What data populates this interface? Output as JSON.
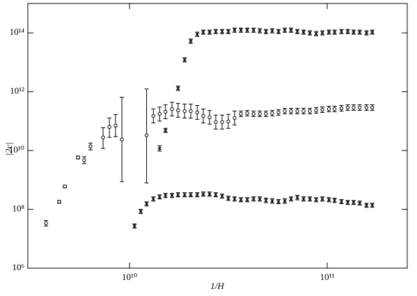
{
  "chart_data": {
    "type": "scatter",
    "xscale": "log",
    "yscale": "log",
    "xlabel": "1/H",
    "ylabel": "|2c|",
    "xlim": [
      3060000000.0,
      254000000000.0
    ],
    "ylim": [
      1000000.0,
      1000000000000000.0
    ],
    "xticks": [
      {
        "value": 10000000000.0,
        "label": "10¹⁰"
      },
      {
        "value": 100000000000.0,
        "label": "10¹¹"
      }
    ],
    "yticks": [
      {
        "value": 1000000.0,
        "label": "10⁶"
      },
      {
        "value": 100000000.0,
        "label": "10⁸"
      },
      {
        "value": 10000000000.0,
        "label": "10¹⁰"
      },
      {
        "value": 1000000000000.0,
        "label": "10¹²"
      },
      {
        "value": 100000000000000.0,
        "label": "10¹⁴"
      }
    ],
    "series": [
      {
        "marker": "circle",
        "color": "#000000",
        "x": [
          3780000000.0,
          4410000000.0,
          4710000000.0,
          5490000000.0,
          5900000000.0,
          6350000000.0,
          7350000000.0,
          7910000000.0,
          8500000000.0,
          9150000000.0,
          12200000000.0,
          13200000000.0,
          14200000000.0,
          15200000000.0,
          16400000000.0,
          17600000000.0,
          19000000000.0,
          20400000000.0,
          22000000000.0,
          23600000000.0,
          25400000000.0,
          27300000000.0,
          29400000000.0,
          31600000000.0,
          34000000000.0,
          36600000000.0,
          39400000000.0,
          42400000000.0,
          45600000000.0,
          49000000000.0,
          52700000000.0,
          56700000000.0,
          61000000000.0,
          65600000000.0,
          70600000000.0,
          75900000000.0,
          81700000000.0,
          87900000000.0,
          94500000000.0,
          102000000000.0,
          109000000000.0,
          118000000000.0,
          127000000000.0,
          136000000000.0,
          146000000000.0,
          158000000000.0,
          169000000000.0
        ],
        "values": [
          33800000.0,
          182000000.0,
          597000000.0,
          5820000000.0,
          4690000000.0,
          13800000000.0,
          28000000000.0,
          63100000000.0,
          70300000000.0,
          23800000000.0,
          32900000000.0,
          150000000000.0,
          177000000000.0,
          208000000000.0,
          258000000000.0,
          232000000000.0,
          219000000000.0,
          219000000000.0,
          197000000000.0,
          150000000000.0,
          135000000000.0,
          92200000000.0,
          92200000000.0,
          97300000000.0,
          128000000000.0,
          177000000000.0,
          186000000000.0,
          177000000000.0,
          177000000000.0,
          177000000000.0,
          186000000000.0,
          197000000000.0,
          219000000000.0,
          219000000000.0,
          219000000000.0,
          219000000000.0,
          219000000000.0,
          232000000000.0,
          244000000000.0,
          258000000000.0,
          258000000000.0,
          272000000000.0,
          288000000000.0,
          288000000000.0,
          288000000000.0,
          288000000000.0,
          288000000000.0
        ],
        "lower": [
          27000000.0,
          160000000.0,
          540000000.0,
          5200000000.0,
          3600000000.0,
          10500000000.0,
          11800000000.0,
          28000000000.0,
          29600000000.0,
          873000000.0,
          784000000.0,
          87000000000.0,
          100000000000.0,
          120000000000.0,
          150000000000.0,
          135000000000.0,
          127000000000.0,
          127000000000.0,
          115000000000.0,
          87000000000.0,
          79000000000.0,
          54000000000.0,
          54000000000.0,
          57000000000.0,
          74000000000.0,
          143000000000.0,
          150000000000.0,
          143000000000.0,
          143000000000.0,
          143000000000.0,
          150000000000.0,
          159000000000.0,
          176000000000.0,
          176000000000.0,
          176000000000.0,
          176000000000.0,
          176000000000.0,
          187000000000.0,
          196000000000.0,
          208000000000.0,
          208000000000.0,
          219000000000.0,
          232000000000.0,
          232000000000.0,
          232000000000.0,
          232000000000.0,
          232000000000.0
        ],
        "upper": [
          42000000.0,
          200000000.0,
          660000000.0,
          6500000000.0,
          6100000000.0,
          18000000000.0,
          59700000000.0,
          128000000000.0,
          167000000000.0,
          649000000000.0,
          1240000000000.0,
          260000000000.0,
          300000000000.0,
          360000000000.0,
          440000000000.0,
          400000000000.0,
          380000000000.0,
          380000000000.0,
          340000000000.0,
          260000000000.0,
          230000000000.0,
          160000000000.0,
          160000000000.0,
          170000000000.0,
          220000000000.0,
          220000000000.0,
          230000000000.0,
          220000000000.0,
          220000000000.0,
          220000000000.0,
          230000000000.0,
          245000000000.0,
          272000000000.0,
          272000000000.0,
          272000000000.0,
          272000000000.0,
          272000000000.0,
          288000000000.0,
          303000000000.0,
          320000000000.0,
          320000000000.0,
          338000000000.0,
          358000000000.0,
          358000000000.0,
          358000000000.0,
          358000000000.0,
          358000000000.0
        ]
      },
      {
        "marker": "x",
        "color": "#000000",
        "x": [
          10600000000.0,
          11400000000.0,
          12200000000.0,
          13200000000.0,
          14200000000.0,
          15200000000.0,
          16400000000.0,
          17600000000.0,
          19000000000.0,
          20400000000.0,
          22000000000.0,
          23600000000.0,
          25400000000.0,
          27300000000.0,
          29400000000.0,
          31600000000.0,
          34000000000.0,
          36600000000.0,
          39400000000.0,
          42400000000.0,
          45600000000.0,
          49000000000.0,
          52700000000.0,
          56700000000.0,
          61000000000.0,
          65600000000.0,
          70600000000.0,
          75900000000.0,
          81700000000.0,
          87900000000.0,
          94500000000.0,
          102000000000.0,
          109000000000.0,
          118000000000.0,
          127000000000.0,
          136000000000.0,
          146000000000.0,
          158000000000.0,
          169000000000.0
        ],
        "values": [
          27300000.0,
          85000000.0,
          154000000.0,
          225000000.0,
          265000000.0,
          296000000.0,
          296000000.0,
          312000000.0,
          312000000.0,
          312000000.0,
          312000000.0,
          329000000.0,
          329000000.0,
          312000000.0,
          280000000.0,
          238000000.0,
          225000000.0,
          213000000.0,
          213000000.0,
          225000000.0,
          225000000.0,
          202000000.0,
          192000000.0,
          182000000.0,
          192000000.0,
          225000000.0,
          251000000.0,
          225000000.0,
          225000000.0,
          213000000.0,
          225000000.0,
          213000000.0,
          202000000.0,
          182000000.0,
          172000000.0,
          172000000.0,
          163000000.0,
          138000000.0,
          138000000.0
        ],
        "lower": [
          23000000.0,
          72000000.0,
          130000000.0,
          190000000.0,
          225000000.0,
          250000000.0,
          250000000.0,
          265000000.0,
          265000000.0,
          265000000.0,
          265000000.0,
          280000000.0,
          280000000.0,
          265000000.0,
          240000000.0,
          200000000.0,
          190000000.0,
          180000000.0,
          180000000.0,
          190000000.0,
          190000000.0,
          170000000.0,
          160000000.0,
          155000000.0,
          160000000.0,
          190000000.0,
          210000000.0,
          190000000.0,
          190000000.0,
          180000000.0,
          190000000.0,
          180000000.0,
          170000000.0,
          155000000.0,
          146000000.0,
          146000000.0,
          140000000.0,
          117000000.0,
          117000000.0
        ],
        "upper": [
          32000000.0,
          100000000.0,
          180000000.0,
          265000000.0,
          310000000.0,
          350000000.0,
          350000000.0,
          370000000.0,
          370000000.0,
          370000000.0,
          370000000.0,
          390000000.0,
          390000000.0,
          370000000.0,
          330000000.0,
          280000000.0,
          265000000.0,
          250000000.0,
          250000000.0,
          265000000.0,
          265000000.0,
          240000000.0,
          230000000.0,
          215000000.0,
          230000000.0,
          265000000.0,
          300000000.0,
          265000000.0,
          265000000.0,
          250000000.0,
          265000000.0,
          250000000.0,
          240000000.0,
          215000000.0,
          200000000.0,
          200000000.0,
          190000000.0,
          160000000.0,
          160000000.0
        ]
      },
      {
        "marker": "x",
        "color": "#000000",
        "x": [
          14200000000.0,
          15200000000.0,
          17600000000.0,
          19000000000.0,
          20400000000.0,
          22000000000.0,
          23600000000.0,
          25400000000.0,
          27300000000.0,
          29400000000.0,
          31600000000.0,
          34000000000.0,
          36600000000.0,
          39400000000.0,
          42400000000.0,
          45600000000.0,
          49000000000.0,
          52700000000.0,
          56700000000.0,
          61000000000.0,
          65600000000.0,
          70600000000.0,
          75900000000.0,
          81700000000.0,
          87900000000.0,
          94500000000.0,
          102000000000.0,
          109000000000.0,
          118000000000.0,
          127000000000.0,
          136000000000.0,
          146000000000.0,
          158000000000.0,
          169000000000.0
        ],
        "values": [
          11800000000.0,
          48100000000.0,
          1310000000000.0,
          12100000000000.0,
          52200000000000.0,
          89700000000000.0,
          106000000000000.0,
          106000000000000.0,
          111000000000000.0,
          111000000000000.0,
          111000000000000.0,
          124000000000000.0,
          124000000000000.0,
          124000000000000.0,
          124000000000000.0,
          118000000000000.0,
          111000000000000.0,
          118000000000000.0,
          111000000000000.0,
          124000000000000.0,
          124000000000000.0,
          111000000000000.0,
          106000000000000.0,
          100000000000000.0,
          94700000000000.0,
          100000000000000.0,
          106000000000000.0,
          106000000000000.0,
          111000000000000.0,
          111000000000000.0,
          106000000000000.0,
          106000000000000.0,
          100000000000000.0,
          106000000000000.0
        ],
        "lower": [
          9500000000.0,
          41000000000.0,
          1100000000000.0,
          10300000000000.0,
          44000000000000.0,
          76000000000000.0,
          90000000000000.0,
          90000000000000.0,
          94000000000000.0,
          94000000000000.0,
          94000000000000.0,
          105000000000000.0,
          105000000000000.0,
          105000000000000.0,
          105000000000000.0,
          100000000000000.0,
          94000000000000.0,
          100000000000000.0,
          94000000000000.0,
          105000000000000.0,
          105000000000000.0,
          94000000000000.0,
          90000000000000.0,
          85000000000000.0,
          80000000000000.0,
          85000000000000.0,
          90000000000000.0,
          90000000000000.0,
          94000000000000.0,
          94000000000000.0,
          90000000000000.0,
          90000000000000.0,
          85000000000000.0,
          90000000000000.0
        ],
        "upper": [
          14600000000.0,
          57000000000.0,
          1550000000000.0,
          14300000000000.0,
          62000000000000.0,
          106000000000000.0,
          125000000000000.0,
          125000000000000.0,
          131000000000000.0,
          131000000000000.0,
          131000000000000.0,
          146000000000000.0,
          146000000000000.0,
          146000000000000.0,
          146000000000000.0,
          139000000000000.0,
          131000000000000.0,
          139000000000000.0,
          131000000000000.0,
          146000000000000.0,
          146000000000000.0,
          131000000000000.0,
          125000000000000.0,
          118000000000000.0,
          112000000000000.0,
          118000000000000.0,
          125000000000000.0,
          125000000000000.0,
          131000000000000.0,
          131000000000000.0,
          125000000000000.0,
          125000000000000.0,
          118000000000000.0,
          125000000000000.0
        ]
      }
    ]
  }
}
